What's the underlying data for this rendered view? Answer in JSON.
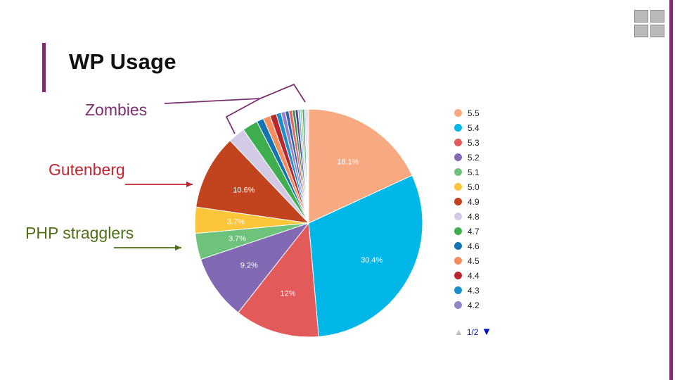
{
  "slide": {
    "title": "WP Usage",
    "accent_color": "#7b2f6f"
  },
  "annotations": [
    {
      "id": "zombies",
      "text": "Zombies",
      "color": "#7b2f6f"
    },
    {
      "id": "gutenberg",
      "text": "Gutenberg",
      "color": "#c0262d"
    },
    {
      "id": "php",
      "text": "PHP stragglers",
      "color": "#4f6f15"
    }
  ],
  "pager": {
    "text": "1/2",
    "up_icon": "triangle-up-icon",
    "down_icon": "triangle-down-icon"
  },
  "chart_data": {
    "type": "pie",
    "start_angle_deg": 0,
    "slices": [
      {
        "label": "5.5",
        "value": 18.1,
        "color": "#f7a981",
        "text": "18.1%"
      },
      {
        "label": "5.4",
        "value": 30.4,
        "color": "#00b7e8",
        "text": "30.4%"
      },
      {
        "label": "5.3",
        "value": 12.0,
        "color": "#e25a5a",
        "text": "12%"
      },
      {
        "label": "5.2",
        "value": 9.2,
        "color": "#8169b4",
        "text": "9.2%"
      },
      {
        "label": "5.1",
        "value": 3.7,
        "color": "#6dc27c",
        "text": "3.7%"
      },
      {
        "label": "5.0",
        "value": 3.7,
        "color": "#fcc53a",
        "text": "3.7%"
      },
      {
        "label": "4.9",
        "value": 10.6,
        "color": "#c2441f",
        "text": "10.6%"
      },
      {
        "label": "4.8",
        "value": 2.4,
        "color": "#d3cbe6",
        "text": ""
      },
      {
        "label": "4.7",
        "value": 2.2,
        "color": "#3fae4e",
        "text": ""
      },
      {
        "label": "4.6",
        "value": 1.0,
        "color": "#1674b2",
        "text": ""
      },
      {
        "label": "4.5",
        "value": 1.0,
        "color": "#f78d5d",
        "text": ""
      },
      {
        "label": "4.4",
        "value": 0.9,
        "color": "#b7282e",
        "text": ""
      },
      {
        "label": "4.3",
        "value": 0.7,
        "color": "#1b8fc8",
        "text": ""
      },
      {
        "label": "4.2",
        "value": 0.6,
        "color": "#9483c7",
        "text": ""
      },
      {
        "label": "",
        "value": 0.5,
        "color": "#2b63b0",
        "text": ""
      },
      {
        "label": "",
        "value": 0.5,
        "color": "#e06a6a",
        "text": ""
      },
      {
        "label": "",
        "value": 0.4,
        "color": "#3f8f4f",
        "text": ""
      },
      {
        "label": "",
        "value": 0.4,
        "color": "#5b3f8f",
        "text": ""
      },
      {
        "label": "",
        "value": 0.3,
        "color": "#74b9d8",
        "text": ""
      },
      {
        "label": "",
        "value": 0.3,
        "color": "#a8d08d",
        "text": ""
      },
      {
        "label": "",
        "value": 0.3,
        "color": "#4f9f8f",
        "text": ""
      },
      {
        "label": "",
        "value": 0.2,
        "color": "#c9c9c9",
        "text": ""
      },
      {
        "label": "",
        "value": 0.2,
        "color": "#e0b0c8",
        "text": ""
      },
      {
        "label": "",
        "value": 0.2,
        "color": "#d9d9d9",
        "text": ""
      }
    ],
    "legend_visible_count": 14,
    "legend_placement": "right"
  }
}
